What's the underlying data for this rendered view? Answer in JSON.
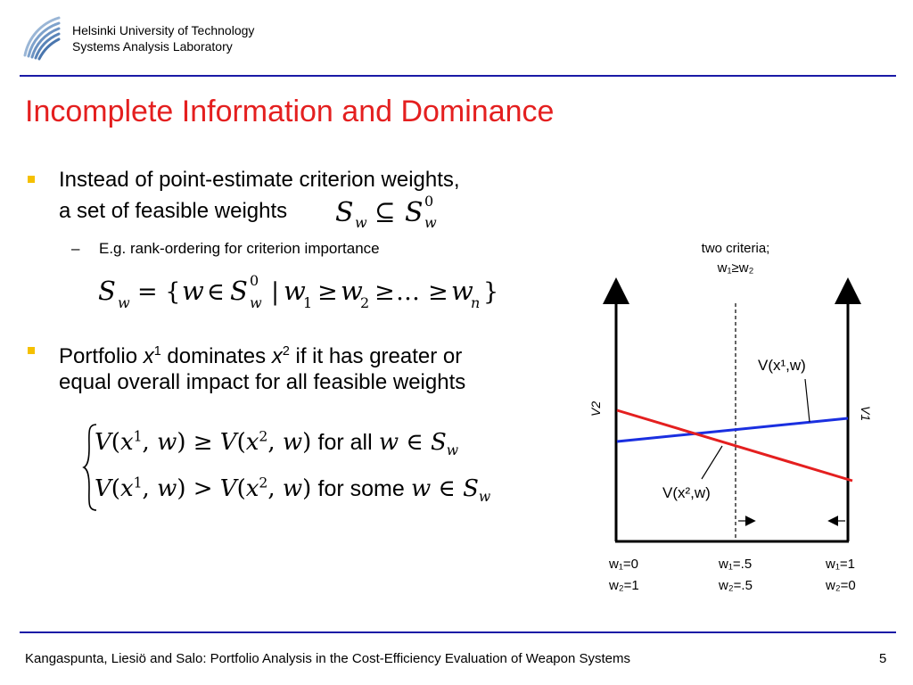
{
  "header": {
    "org_line1": "Helsinki University of Technology",
    "org_line2": "Systems Analysis Laboratory"
  },
  "slide": {
    "title": "Incomplete Information and Dominance",
    "bullet1_line1": "Instead of point-estimate criterion weights,",
    "bullet1_line2": "a set of feasible weights",
    "sub_bullet_dash": "–",
    "sub_bullet": "E.g. rank-ordering for criterion importance",
    "bullet2_pre": "Portfolio ",
    "bullet2_x": "x",
    "bullet2_sup1": "1",
    "bullet2_mid": " dominates ",
    "bullet2_sup2": "2",
    "bullet2_post": " if it has greater or",
    "bullet2_line2": "equal overall impact for all feasible weights",
    "cond1_word": "for all",
    "cond2_word": "for some"
  },
  "diagram": {
    "caption_line1": "two criteria;",
    "caption_line2": "w₁≥w₂",
    "v2_axis": "V2",
    "v1_axis": "V1",
    "line1_label": "V(x¹,w)",
    "line2_label": "V(x²,w)",
    "left_tick_1": "w₁=0",
    "left_tick_2": "w₂=1",
    "mid_tick_1": "w₁=.5",
    "mid_tick_2": "w₂=.5",
    "right_tick_1": "w₁=1",
    "right_tick_2": "w₂=0",
    "colors": {
      "line_x1": "#1a2fe0",
      "line_x2": "#e41f1f"
    }
  },
  "footer": {
    "text": "Kangaspunta, Liesiö and Salo: Portfolio Analysis in the Cost-Efficiency Evaluation of Weapon Systems",
    "page": "5"
  }
}
